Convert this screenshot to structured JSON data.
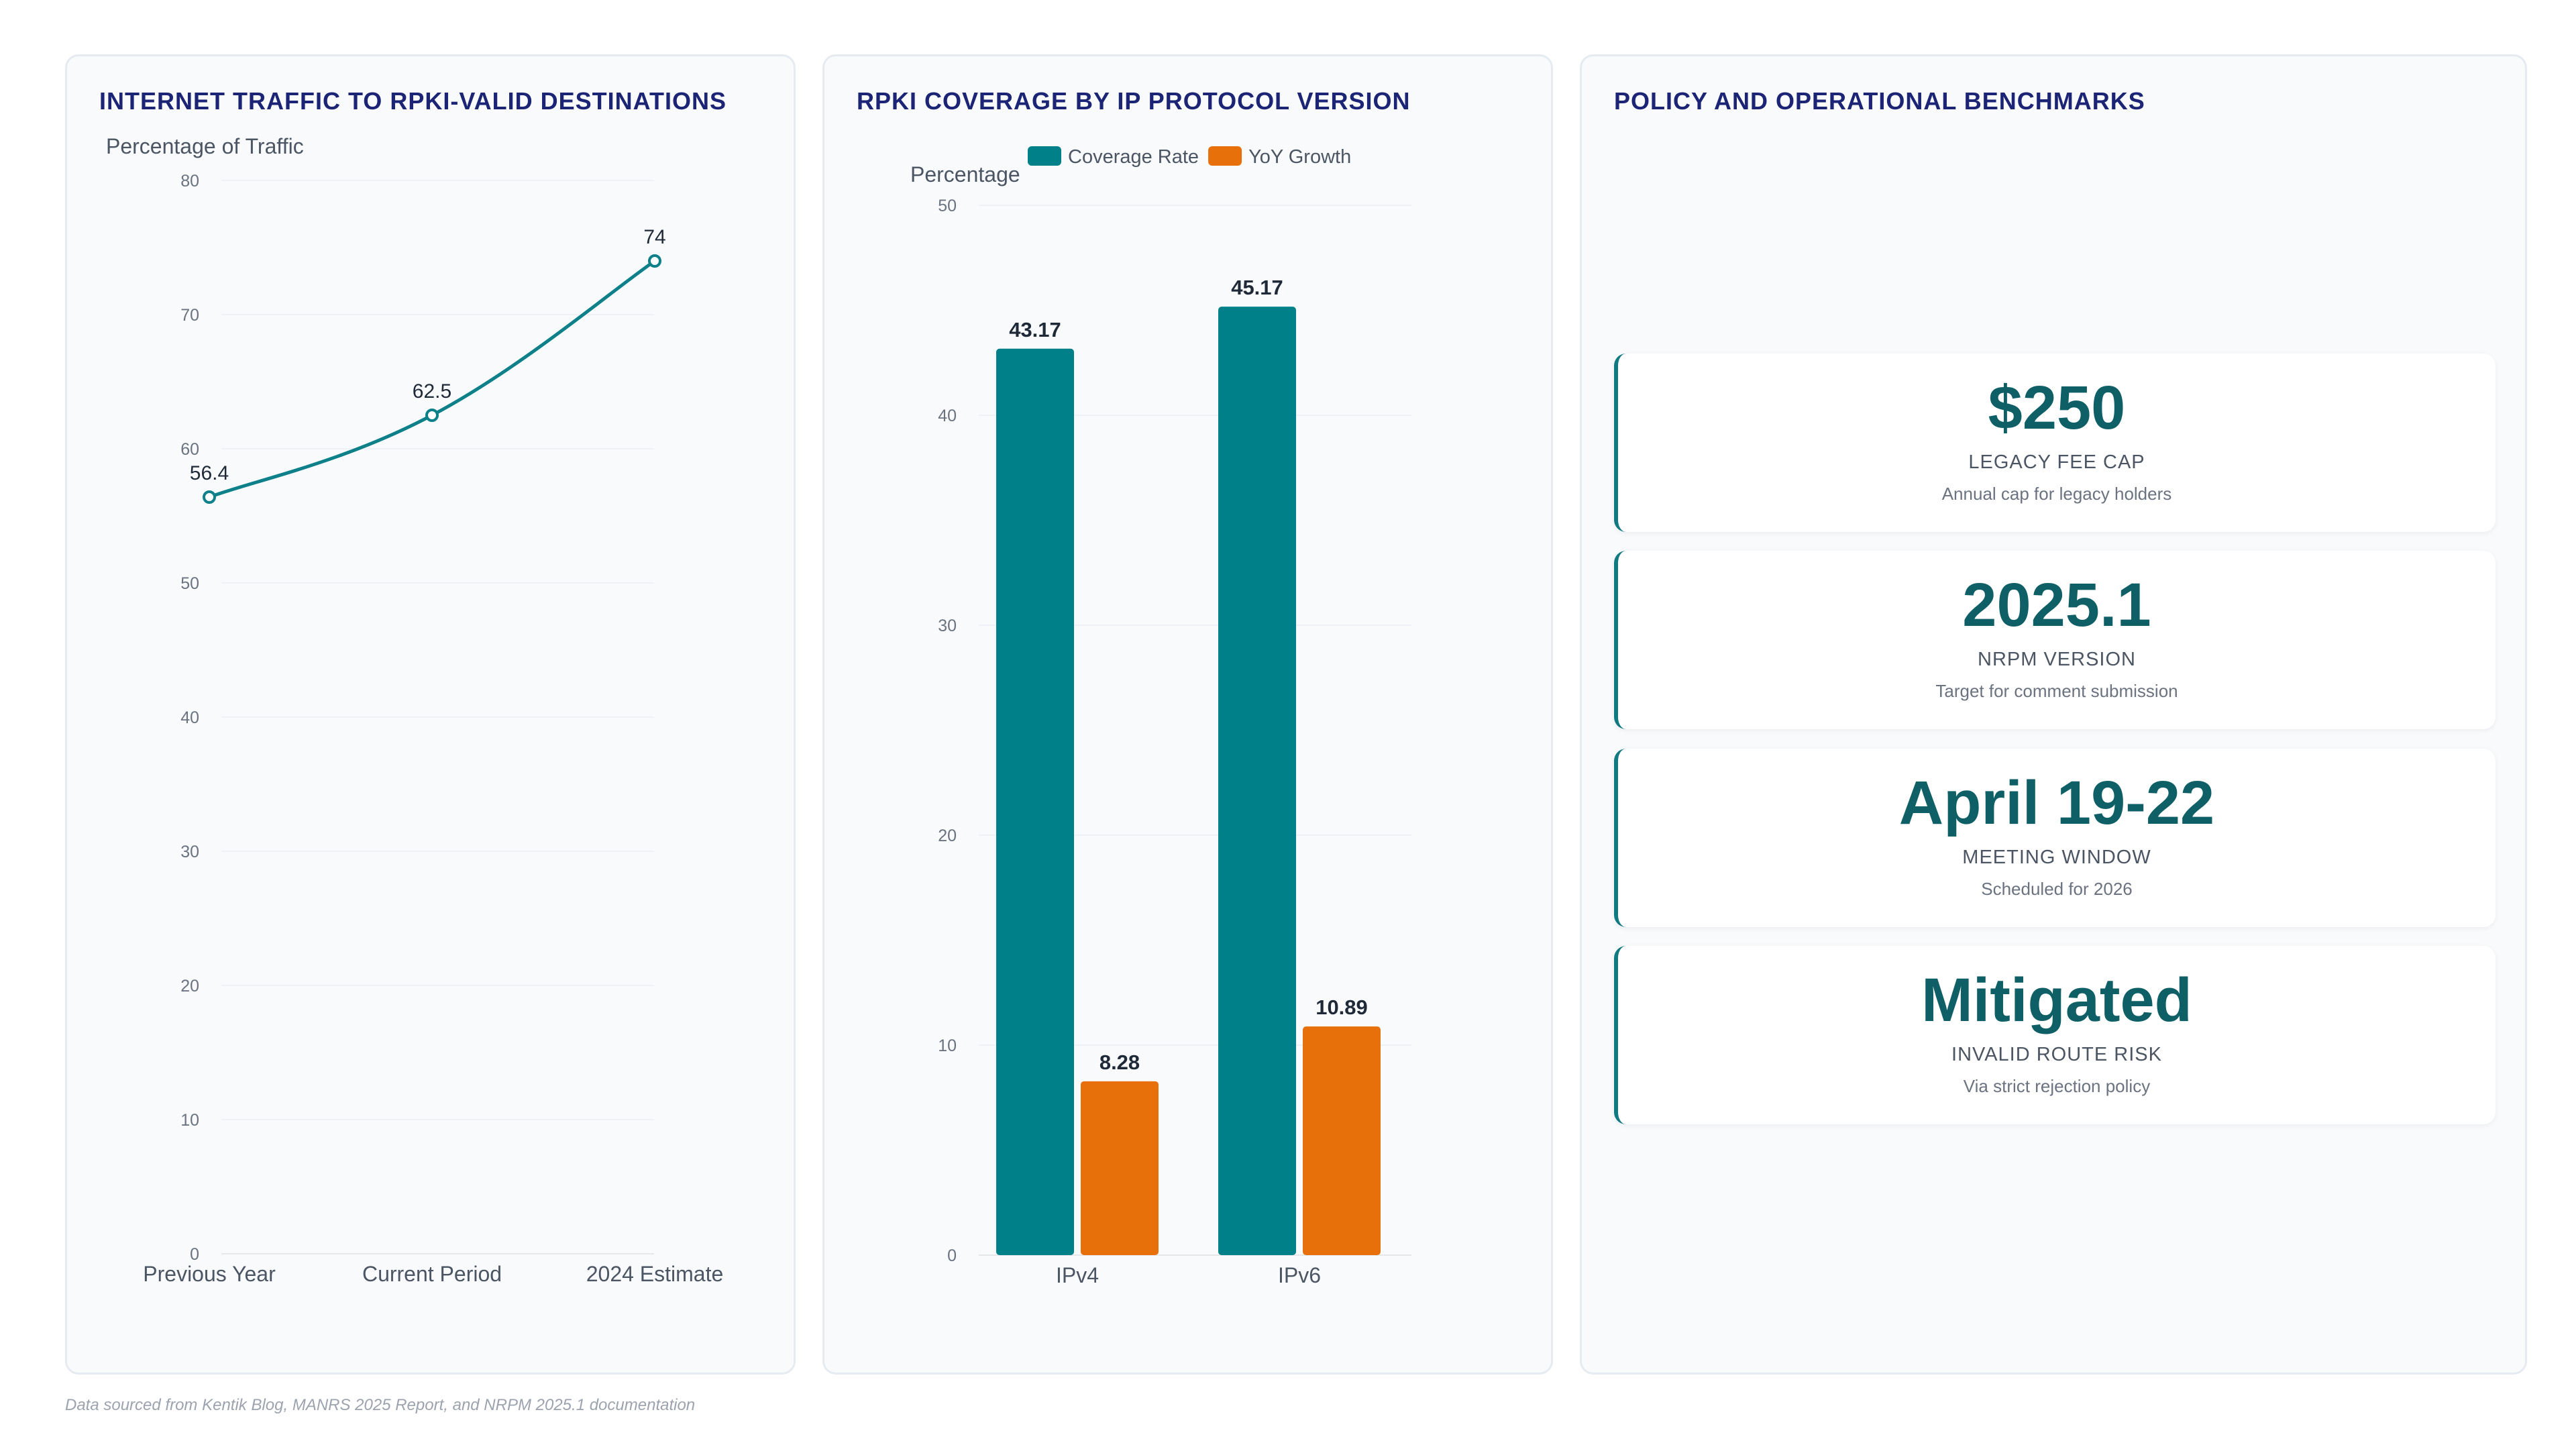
{
  "charts": [
    {
      "id": "line",
      "title": "INTERNET TRAFFIC TO RPKI-VALID DESTINATIONS",
      "chart_data": {
        "type": "line",
        "title": "INTERNET TRAFFIC TO RPKI-VALID DESTINATIONS",
        "ylabel": "Percentage of Traffic",
        "xlabel": "",
        "categories": [
          "Previous Year",
          "Current Period",
          "2024 Estimate"
        ],
        "series": [
          {
            "values": [
              56.4,
              62.5,
              74
            ]
          }
        ],
        "ylim": [
          0,
          80
        ],
        "yticks": [
          0,
          10,
          20,
          30,
          40,
          50,
          60,
          70,
          80
        ],
        "grid": true,
        "color": "#0e8089"
      }
    },
    {
      "id": "bar",
      "title": "RPKI COVERAGE BY IP PROTOCOL VERSION",
      "chart_data": {
        "type": "bar",
        "title": "RPKI COVERAGE BY IP PROTOCOL VERSION",
        "ylabel": "Percentage",
        "xlabel": "",
        "categories": [
          "IPv4",
          "IPv6"
        ],
        "series": [
          {
            "name": "Coverage Rate",
            "values": [
              43.17,
              45.17
            ],
            "color": "#00818a"
          },
          {
            "name": "YoY Growth",
            "values": [
              8.28,
              10.89
            ],
            "color": "#e8700a"
          }
        ],
        "ylim": [
          0,
          50
        ],
        "yticks": [
          0,
          10,
          20,
          30,
          40,
          50
        ],
        "grid": true,
        "legend": "top"
      }
    }
  ],
  "kpi": {
    "title": "POLICY AND OPERATIONAL BENCHMARKS",
    "cards": [
      {
        "value": "$250",
        "label": "LEGACY FEE CAP",
        "desc": "Annual cap for legacy holders"
      },
      {
        "value": "2025.1",
        "label": "NRPM VERSION",
        "desc": "Target for comment submission"
      },
      {
        "value": "April 19-22",
        "label": "MEETING WINDOW",
        "desc": "Scheduled for 2026"
      },
      {
        "value": "Mitigated",
        "label": "INVALID ROUTE RISK",
        "desc": "Via strict rejection policy"
      }
    ]
  },
  "footer": "Data sourced from Kentik Blog, MANRS 2025 Report, and NRPM 2025.1 documentation"
}
